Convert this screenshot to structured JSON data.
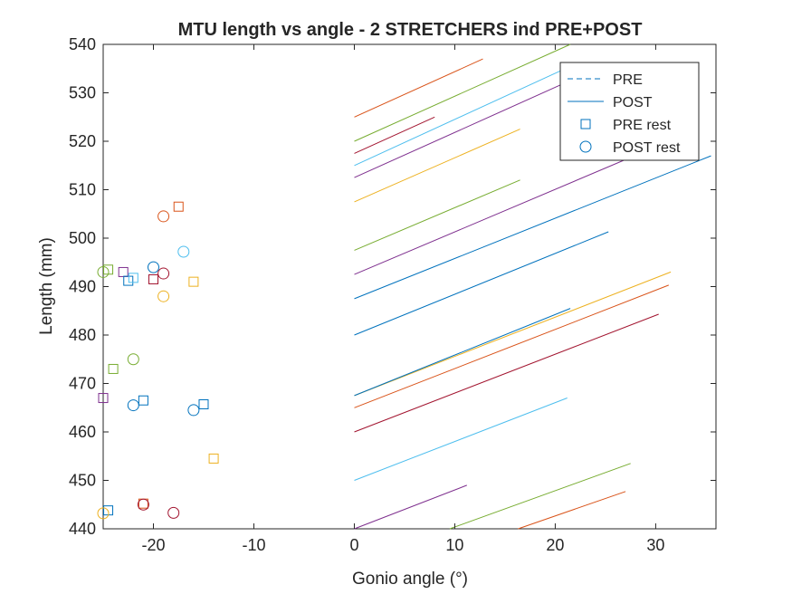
{
  "chart_data": {
    "type": "line",
    "title": "MTU length vs angle - 2 STRETCHERS ind PRE+POST",
    "xlabel": "Gonio angle (°)",
    "ylabel": "Length (mm)",
    "xlim": [
      -25,
      36
    ],
    "ylim": [
      440,
      540
    ],
    "xticks": [
      -20,
      -10,
      0,
      10,
      20,
      30
    ],
    "yticks": [
      440,
      450,
      460,
      470,
      480,
      490,
      500,
      510,
      520,
      530,
      540
    ],
    "grid": false,
    "legend": {
      "placement": "top-right",
      "entries": [
        {
          "label": "PRE",
          "style": "dashed-line"
        },
        {
          "label": "POST",
          "style": "solid-line"
        },
        {
          "label": "PRE rest",
          "style": "square-marker"
        },
        {
          "label": "POST rest",
          "style": "circle-marker"
        }
      ],
      "color": "#0072BD"
    },
    "colors": [
      "#0072BD",
      "#D95319",
      "#EDB120",
      "#7E2F8E",
      "#77AC30",
      "#4DBEEE",
      "#A2142F"
    ],
    "lines": [
      {
        "color": "#D95319",
        "x": [
          0,
          12.8
        ],
        "y": [
          525,
          537
        ]
      },
      {
        "color": "#77AC30",
        "x": [
          0,
          21.5
        ],
        "y": [
          520,
          540
        ]
      },
      {
        "color": "#A2142F",
        "x": [
          0,
          8
        ],
        "y": [
          517.5,
          525
        ]
      },
      {
        "color": "#4DBEEE",
        "x": [
          0,
          21
        ],
        "y": [
          515,
          535
        ]
      },
      {
        "color": "#7E2F8E",
        "x": [
          0,
          22
        ],
        "y": [
          512.5,
          533
        ]
      },
      {
        "color": "#EDB120",
        "x": [
          0,
          16.5
        ],
        "y": [
          507.5,
          522.5
        ]
      },
      {
        "color": "#77AC30",
        "x": [
          0,
          16.5
        ],
        "y": [
          497.5,
          512
        ]
      },
      {
        "color": "#7E2F8E",
        "x": [
          0,
          33
        ],
        "y": [
          492.5,
          521.5
        ]
      },
      {
        "color": "#0072BD",
        "x": [
          0,
          35.5
        ],
        "y": [
          487.5,
          517
        ]
      },
      {
        "color": "#0072BD",
        "x": [
          0,
          25.3
        ],
        "y": [
          480,
          501.3
        ]
      },
      {
        "color": "#EDB120",
        "x": [
          0,
          31.5
        ],
        "y": [
          467.5,
          493
        ]
      },
      {
        "color": "#0072BD",
        "x": [
          0,
          21.5
        ],
        "y": [
          467.5,
          485.5
        ]
      },
      {
        "color": "#D95319",
        "x": [
          0,
          31.3
        ],
        "y": [
          465,
          490.3
        ]
      },
      {
        "color": "#A2142F",
        "x": [
          0,
          30.3
        ],
        "y": [
          460,
          484.3
        ]
      },
      {
        "color": "#4DBEEE",
        "x": [
          0,
          21.2
        ],
        "y": [
          450,
          467
        ]
      },
      {
        "color": "#7E2F8E",
        "x": [
          0,
          11.2
        ],
        "y": [
          440,
          449
        ]
      },
      {
        "color": "#77AC30",
        "x": [
          9.5,
          27.5
        ],
        "y": [
          440,
          453.5
        ]
      },
      {
        "color": "#D95319",
        "x": [
          16.3,
          27
        ],
        "y": [
          440,
          447.7
        ]
      }
    ],
    "pre_rest": [
      {
        "color": "#D95319",
        "x": -17.5,
        "y": 506.5
      },
      {
        "color": "#EDB120",
        "x": -16,
        "y": 491
      },
      {
        "color": "#A2142F",
        "x": -20,
        "y": 491.5
      },
      {
        "color": "#7E2F8E",
        "x": -23,
        "y": 493
      },
      {
        "color": "#0072BD",
        "x": -22.5,
        "y": 491.2
      },
      {
        "color": "#4DBEEE",
        "x": -22,
        "y": 491.8
      },
      {
        "color": "#77AC30",
        "x": -24.5,
        "y": 493.5
      },
      {
        "color": "#77AC30",
        "x": -24,
        "y": 473
      },
      {
        "color": "#7E2F8E",
        "x": -25,
        "y": 467
      },
      {
        "color": "#0072BD",
        "x": -21,
        "y": 466.5
      },
      {
        "color": "#0072BD",
        "x": -15,
        "y": 465.7
      },
      {
        "color": "#EDB120",
        "x": -14,
        "y": 454.5
      },
      {
        "color": "#0072BD",
        "x": -24.5,
        "y": 443.8
      },
      {
        "color": "#D95319",
        "x": -21,
        "y": 445.2
      }
    ],
    "post_rest": [
      {
        "color": "#D95319",
        "x": -19,
        "y": 504.5
      },
      {
        "color": "#4DBEEE",
        "x": -17,
        "y": 497.2
      },
      {
        "color": "#0072BD",
        "x": -20,
        "y": 494
      },
      {
        "color": "#A2142F",
        "x": -19,
        "y": 492.7
      },
      {
        "color": "#77AC30",
        "x": -25,
        "y": 493
      },
      {
        "color": "#EDB120",
        "x": -19,
        "y": 488
      },
      {
        "color": "#77AC30",
        "x": -22,
        "y": 475
      },
      {
        "color": "#0072BD",
        "x": -22,
        "y": 465.5
      },
      {
        "color": "#0072BD",
        "x": -16,
        "y": 464.5
      },
      {
        "color": "#A2142F",
        "x": -21,
        "y": 445
      },
      {
        "color": "#A2142F",
        "x": -18,
        "y": 443.3
      },
      {
        "color": "#EDB120",
        "x": -25,
        "y": 443.2
      }
    ]
  }
}
